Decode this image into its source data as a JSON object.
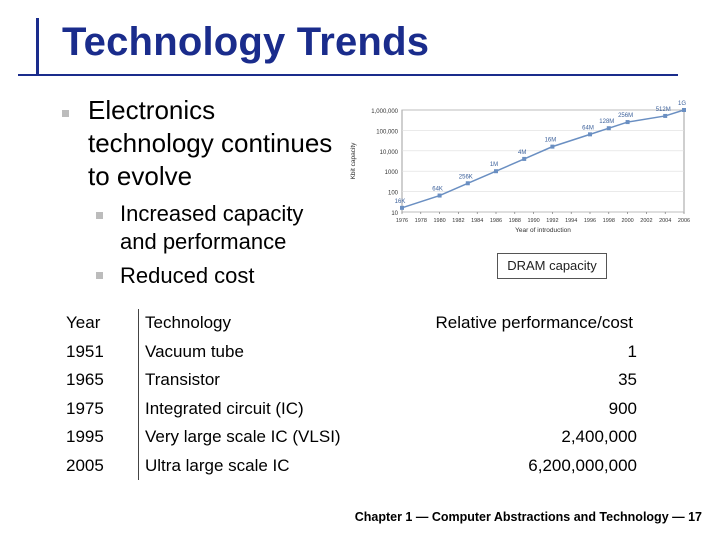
{
  "slide": {
    "title": "Technology Trends",
    "bullet_main": "Electronics technology continues to evolve",
    "sub_bullets": [
      "Increased capacity and performance",
      "Reduced cost"
    ],
    "caption": "DRAM capacity",
    "footer": "Chapter 1 — Computer Abstractions and Technology — 17"
  },
  "table": {
    "headers": [
      "Year",
      "Technology",
      "Relative performance/cost"
    ],
    "rows": [
      [
        "1951",
        "Vacuum tube",
        "1"
      ],
      [
        "1965",
        "Transistor",
        "35"
      ],
      [
        "1975",
        "Integrated circuit (IC)",
        "900"
      ],
      [
        "1995",
        "Very large scale IC (VLSI)",
        "2,400,000"
      ],
      [
        "2005",
        "Ultra large scale IC",
        "6,200,000,000"
      ]
    ]
  },
  "chart_data": {
    "type": "line",
    "xlabel": "Year of introduction",
    "ylabel": "Kbit capacity",
    "yscale": "log",
    "ylim": [
      10,
      1000000
    ],
    "xlim": [
      1976,
      2006
    ],
    "x_ticks": [
      "1976",
      "1978",
      "1980",
      "1982",
      "1984",
      "1986",
      "1988",
      "1990",
      "1992",
      "1994",
      "1996",
      "1998",
      "2000",
      "2002",
      "2004",
      "2006"
    ],
    "y_ticks": [
      "10",
      "100",
      "1000",
      "10,000",
      "100,000",
      "1,000,000"
    ],
    "series": [
      {
        "x": [
          1976,
          1980,
          1983,
          1986,
          1989,
          1992,
          1996,
          1998,
          2000,
          2004,
          2006
        ],
        "y": [
          16,
          64,
          256,
          1000,
          4000,
          16000,
          64000,
          128000,
          256000,
          512000,
          1000000
        ],
        "labels": [
          "16K",
          "64K",
          "256K",
          "1M",
          "4M",
          "16M",
          "64M",
          "128M",
          "256M",
          "512M",
          "1G"
        ],
        "color": "#6a8fc2"
      }
    ]
  },
  "colors": {
    "title": "#1a2c8c",
    "rule": "#1a2c8c",
    "bullet": "#bcbcbc"
  }
}
